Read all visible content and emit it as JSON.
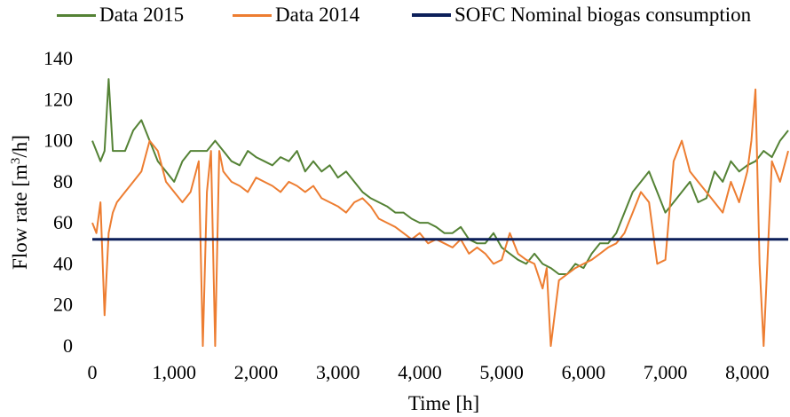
{
  "chart_data": {
    "type": "line",
    "xlabel": "Time [h]",
    "ylabel_main": "Flow rate [m",
    "ylabel_sup": "3",
    "ylabel_tail": "/h]",
    "xlim": [
      0,
      8500
    ],
    "ylim": [
      0,
      140
    ],
    "x_ticks": [
      0,
      1000,
      2000,
      3000,
      4000,
      5000,
      6000,
      7000,
      8000
    ],
    "x_tick_labels": [
      "0",
      "1,000",
      "2,000",
      "3,000",
      "4,000",
      "5,000",
      "6,000",
      "7,000",
      "8,000"
    ],
    "y_ticks": [
      0,
      20,
      40,
      60,
      80,
      100,
      120,
      140
    ],
    "y_tick_labels": [
      "0",
      "20",
      "40",
      "60",
      "80",
      "100",
      "120",
      "140"
    ],
    "grid": false,
    "legend_position": "top",
    "series": [
      {
        "name": "Data 2015",
        "color": "#548235",
        "x": [
          0,
          50,
          100,
          150,
          200,
          250,
          300,
          400,
          500,
          600,
          700,
          800,
          900,
          1000,
          1100,
          1200,
          1300,
          1400,
          1500,
          1600,
          1700,
          1800,
          1900,
          2000,
          2100,
          2200,
          2300,
          2400,
          2500,
          2600,
          2700,
          2800,
          2900,
          3000,
          3100,
          3200,
          3300,
          3400,
          3500,
          3600,
          3700,
          3800,
          3900,
          4000,
          4100,
          4200,
          4300,
          4400,
          4500,
          4600,
          4700,
          4800,
          4900,
          5000,
          5100,
          5200,
          5300,
          5400,
          5500,
          5600,
          5700,
          5800,
          5900,
          6000,
          6100,
          6200,
          6300,
          6400,
          6500,
          6600,
          6700,
          6800,
          6900,
          7000,
          7100,
          7200,
          7300,
          7400,
          7500,
          7600,
          7700,
          7800,
          7900,
          8000,
          8100,
          8200,
          8300,
          8400,
          8500
        ],
        "y": [
          100,
          95,
          90,
          95,
          130,
          95,
          95,
          95,
          105,
          110,
          100,
          90,
          85,
          80,
          90,
          95,
          95,
          95,
          100,
          95,
          90,
          88,
          95,
          92,
          90,
          88,
          92,
          90,
          95,
          85,
          90,
          85,
          88,
          82,
          85,
          80,
          75,
          72,
          70,
          68,
          65,
          65,
          62,
          60,
          60,
          58,
          55,
          55,
          58,
          52,
          50,
          50,
          55,
          48,
          45,
          42,
          40,
          45,
          40,
          38,
          35,
          35,
          40,
          38,
          45,
          50,
          50,
          55,
          65,
          75,
          80,
          85,
          75,
          65,
          70,
          75,
          80,
          70,
          72,
          85,
          80,
          90,
          85,
          88,
          90,
          95,
          92,
          100,
          105
        ]
      },
      {
        "name": "Data 2014",
        "color": "#ED7D31",
        "x": [
          0,
          50,
          100,
          150,
          200,
          250,
          300,
          400,
          500,
          600,
          700,
          800,
          900,
          1000,
          1100,
          1200,
          1300,
          1350,
          1400,
          1450,
          1500,
          1550,
          1600,
          1700,
          1800,
          1900,
          2000,
          2100,
          2200,
          2300,
          2400,
          2500,
          2600,
          2700,
          2800,
          2900,
          3000,
          3100,
          3200,
          3300,
          3400,
          3500,
          3600,
          3700,
          3800,
          3900,
          4000,
          4100,
          4200,
          4300,
          4400,
          4500,
          4600,
          4700,
          4800,
          4900,
          5000,
          5100,
          5200,
          5300,
          5400,
          5500,
          5550,
          5600,
          5700,
          5800,
          5900,
          6000,
          6100,
          6200,
          6300,
          6400,
          6500,
          6600,
          6700,
          6800,
          6900,
          7000,
          7100,
          7200,
          7300,
          7400,
          7500,
          7600,
          7700,
          7800,
          7900,
          8000,
          8050,
          8100,
          8150,
          8200,
          8300,
          8400,
          8500
        ],
        "y": [
          60,
          55,
          70,
          15,
          55,
          65,
          70,
          75,
          80,
          85,
          100,
          95,
          80,
          75,
          70,
          75,
          90,
          0,
          75,
          95,
          0,
          95,
          85,
          80,
          78,
          75,
          82,
          80,
          78,
          75,
          80,
          78,
          75,
          78,
          72,
          70,
          68,
          65,
          70,
          72,
          68,
          62,
          60,
          58,
          55,
          52,
          55,
          50,
          52,
          50,
          48,
          52,
          45,
          48,
          45,
          40,
          42,
          55,
          45,
          42,
          40,
          28,
          38,
          0,
          32,
          35,
          38,
          40,
          42,
          45,
          48,
          50,
          55,
          65,
          75,
          70,
          40,
          42,
          90,
          100,
          85,
          80,
          75,
          70,
          65,
          80,
          70,
          85,
          100,
          125,
          40,
          0,
          90,
          80,
          95
        ]
      },
      {
        "name": "SOFC Nominal biogas consumption",
        "color": "#0C1F5A",
        "x": [
          0,
          8500
        ],
        "y": [
          52,
          52
        ]
      }
    ]
  }
}
